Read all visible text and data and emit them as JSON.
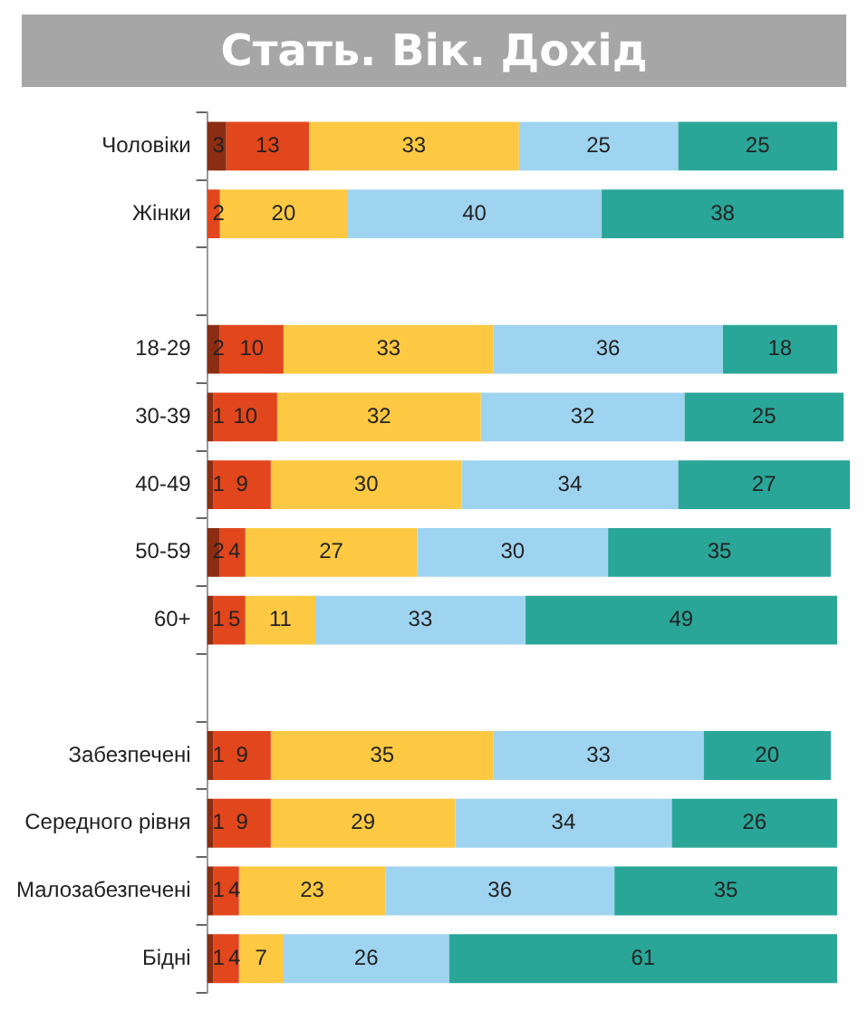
{
  "chart_data": {
    "type": "bar",
    "orientation": "horizontal",
    "stacked": true,
    "title": "Стать. Вік. Дохід",
    "categories": [
      "Чоловіки",
      "Жінки",
      null,
      "18-29",
      "30-39",
      "40-49",
      "50-59",
      "60+",
      null,
      "Забезпечені",
      "Середного рівня",
      "Малозабезпечені",
      "Бідні"
    ],
    "series": [
      {
        "color": "#8b2d12",
        "values": [
          3,
          null,
          null,
          2,
          1,
          1,
          2,
          1,
          null,
          1,
          1,
          1,
          1
        ]
      },
      {
        "color": "#e2461c",
        "values": [
          13,
          2,
          null,
          10,
          10,
          9,
          4,
          5,
          null,
          9,
          9,
          4,
          4
        ]
      },
      {
        "color": "#fdc943",
        "values": [
          33,
          20,
          null,
          33,
          32,
          30,
          27,
          11,
          null,
          35,
          29,
          23,
          7
        ]
      },
      {
        "color": "#9fd4f0",
        "values": [
          25,
          40,
          null,
          36,
          32,
          34,
          30,
          33,
          null,
          33,
          34,
          36,
          26
        ]
      },
      {
        "color": "#2aa698",
        "values": [
          25,
          38,
          null,
          18,
          25,
          27,
          35,
          49,
          null,
          20,
          26,
          35,
          61
        ]
      }
    ],
    "xlim": [
      0,
      101
    ],
    "data_labels": true,
    "grid": false,
    "legend": false,
    "tick_labels": "y"
  }
}
